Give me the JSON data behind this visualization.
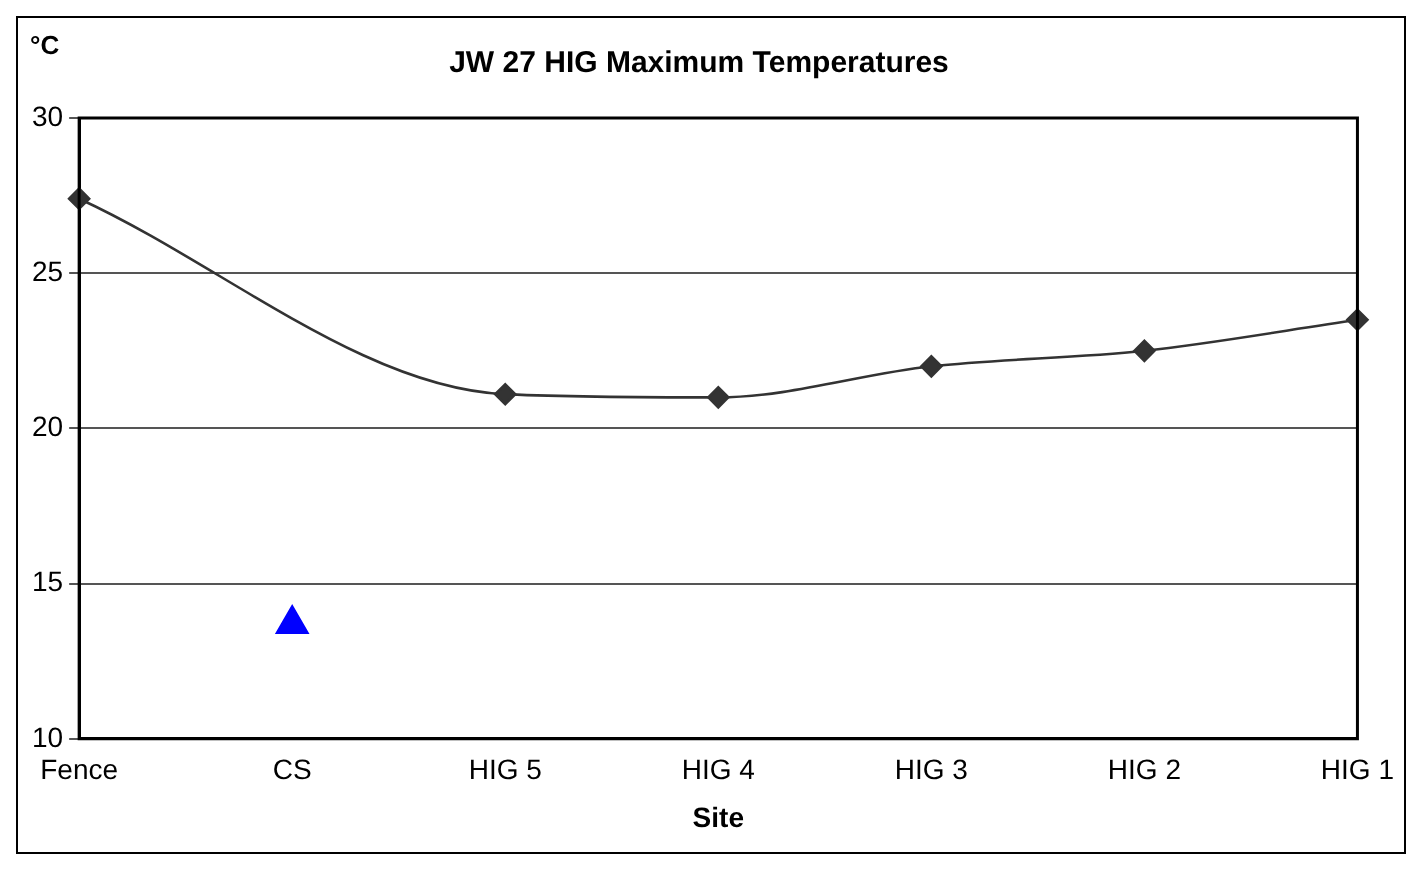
{
  "chart_data": {
    "type": "line",
    "title": "JW 27 HIG Maximum Temperatures",
    "xlabel": "Site",
    "ylabel": "°C",
    "categories": [
      "Fence",
      "CS",
      "HIG 5",
      "HIG 4",
      "HIG 3",
      "HIG 2",
      "HIG 1"
    ],
    "series": [
      {
        "color": "#333333",
        "marker": "diamond",
        "values": [
          27.4,
          null,
          21.1,
          21.0,
          22.0,
          22.5,
          23.5
        ]
      },
      {
        "type": "scatter",
        "color": "#0000ff",
        "marker": "triangle",
        "values": [
          null,
          13.7,
          null,
          null,
          null,
          null,
          null
        ]
      }
    ],
    "ylim": [
      10,
      30
    ],
    "yticks": [
      10,
      15,
      20,
      25,
      30
    ],
    "grid": "y",
    "legend": false
  }
}
